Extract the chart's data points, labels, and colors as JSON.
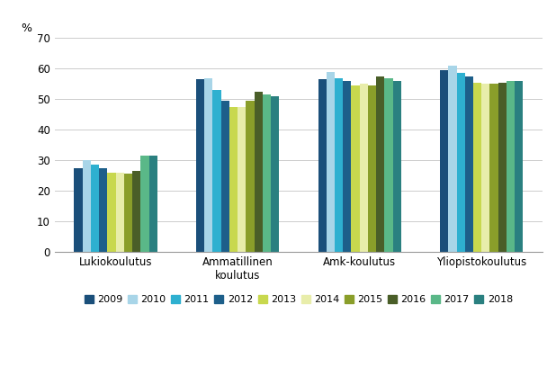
{
  "categories": [
    "Lukiokoulutus",
    "Ammatillinen\nkoulutus",
    "Amk-koulutus",
    "Yliopistokoulutus"
  ],
  "years": [
    "2009",
    "2010",
    "2011",
    "2012",
    "2013",
    "2014",
    "2015",
    "2016",
    "2017",
    "2018"
  ],
  "colors": [
    "#1a4f7a",
    "#a8d5e8",
    "#2eb0d0",
    "#1d5f8a",
    "#c8d84e",
    "#e8edaa",
    "#8a9e2a",
    "#4a5e28",
    "#5ab888",
    "#2a8080"
  ],
  "values": {
    "Lukiokoulutus": [
      27.5,
      30.0,
      28.5,
      27.5,
      26.0,
      26.0,
      25.5,
      26.5,
      31.5,
      31.5
    ],
    "Ammatillinen\nkoulutus": [
      56.5,
      57.0,
      53.0,
      49.5,
      47.5,
      47.5,
      49.5,
      52.5,
      51.5,
      51.0
    ],
    "Amk-koulutus": [
      56.5,
      59.0,
      57.0,
      56.0,
      54.5,
      55.0,
      54.5,
      57.5,
      57.0,
      56.0
    ],
    "Yliopistokoulutus": [
      59.5,
      61.0,
      58.5,
      57.5,
      55.5,
      55.0,
      55.0,
      55.5,
      56.0,
      56.0
    ]
  },
  "ylabel": "%",
  "ylim": [
    0,
    70
  ],
  "yticks": [
    0,
    10,
    20,
    30,
    40,
    50,
    60,
    70
  ],
  "background_color": "#ffffff"
}
